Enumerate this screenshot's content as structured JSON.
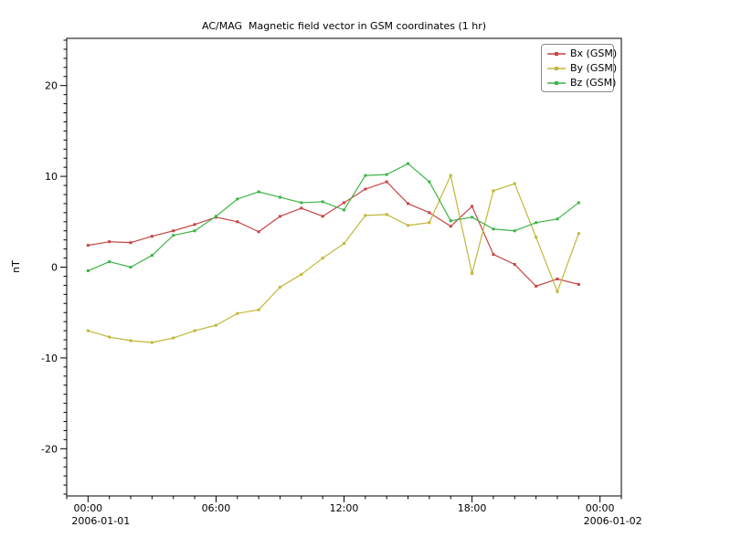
{
  "chart_data": {
    "type": "line",
    "title": "AC/MAG  Magnetic field vector in GSM coordinates (1 hr)",
    "ylabel": "nT",
    "x_hours": [
      0,
      1,
      2,
      3,
      4,
      5,
      6,
      7,
      8,
      9,
      10,
      11,
      12,
      13,
      14,
      15,
      16,
      17,
      18,
      19,
      20,
      21,
      22,
      23
    ],
    "series": [
      {
        "label": "Bx (GSM)",
        "color": "#c64545",
        "values": [
          2.4,
          2.8,
          2.7,
          3.4,
          4.0,
          4.7,
          5.5,
          5.0,
          3.9,
          5.6,
          6.5,
          5.6,
          7.1,
          8.6,
          9.4,
          7.0,
          6.0,
          4.5,
          6.7,
          1.4,
          0.3,
          -2.1,
          -1.3,
          -1.9
        ]
      },
      {
        "label": "By (GSM)",
        "color": "#c0b838",
        "values": [
          -7.0,
          -7.7,
          -8.1,
          -8.3,
          -7.8,
          -7.0,
          -6.4,
          -5.1,
          -4.7,
          -2.2,
          -0.8,
          1.0,
          2.6,
          5.7,
          5.8,
          4.6,
          4.9,
          10.1,
          -0.7,
          8.4,
          9.2,
          3.3,
          -2.7,
          3.7
        ]
      },
      {
        "label": "Bz (GSM)",
        "color": "#3eb449",
        "values": [
          -0.4,
          0.6,
          0.0,
          1.3,
          3.5,
          4.0,
          5.6,
          7.5,
          8.3,
          7.7,
          7.1,
          7.2,
          6.3,
          10.1,
          10.2,
          11.4,
          9.4,
          5.1,
          5.5,
          4.2,
          4.0,
          4.9,
          5.3,
          7.1
        ]
      }
    ],
    "xlim_hours": [
      -1,
      25
    ],
    "ylim": [
      -25.2,
      25.2
    ],
    "y_major_ticks": [
      -20,
      -10,
      0,
      10,
      20
    ],
    "y_minor_step": 1,
    "x_major_ticks_hours": [
      0,
      6,
      12,
      18,
      24
    ],
    "x_major_tick_labels": [
      "00:00",
      "06:00",
      "12:00",
      "18:00",
      "00:00"
    ],
    "x_minor_step_hours": 1,
    "x_date_labels": [
      {
        "hour": 0,
        "text": "2006-01-01"
      },
      {
        "hour": 24,
        "text": "2006-01-02"
      }
    ],
    "grid": false,
    "legend_position": "top-right",
    "axis_color": "#000000"
  }
}
